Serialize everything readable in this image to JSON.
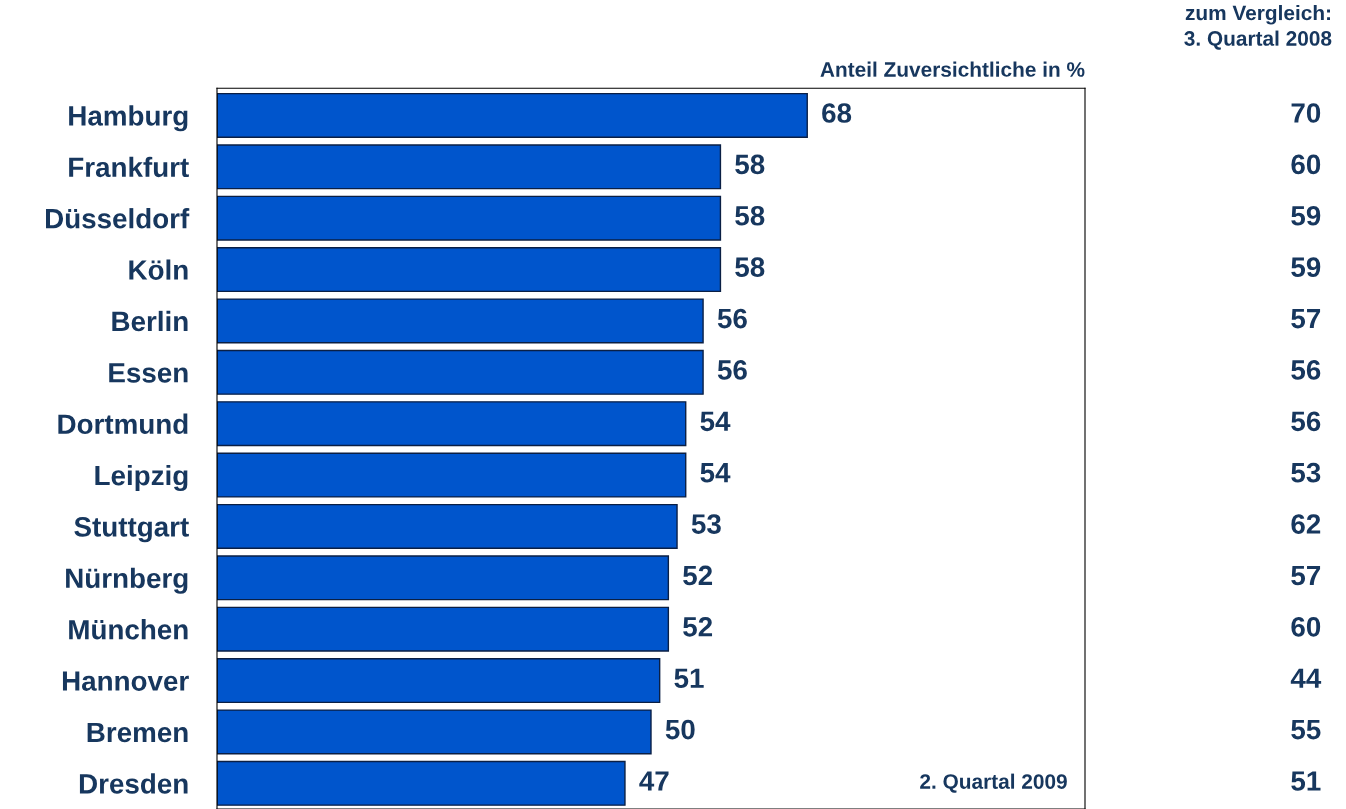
{
  "chart_data": {
    "type": "bar",
    "orientation": "horizontal",
    "xlabel": "Anteil Zuversichtliche in %",
    "categories": [
      "Hamburg",
      "Frankfurt",
      "Düsseldorf",
      "Köln",
      "Berlin",
      "Essen",
      "Dortmund",
      "Leipzig",
      "Stuttgart",
      "Nürnberg",
      "München",
      "Hannover",
      "Bremen",
      "Dresden"
    ],
    "values": [
      68,
      58,
      58,
      58,
      56,
      56,
      54,
      54,
      53,
      52,
      52,
      51,
      50,
      47
    ],
    "color": "#0055cc",
    "xlim": [
      0,
      100
    ],
    "tick_labels": "y",
    "data_labels": true,
    "grid": false,
    "annotations": [
      "2. Quartal 2009",
      "zum Vergleich:\n3. Quartal 2008",
      "70",
      "60",
      "59",
      "59",
      "57",
      "56",
      "56",
      "53",
      "62",
      "57",
      "60",
      "44",
      "55",
      "51"
    ]
  }
}
